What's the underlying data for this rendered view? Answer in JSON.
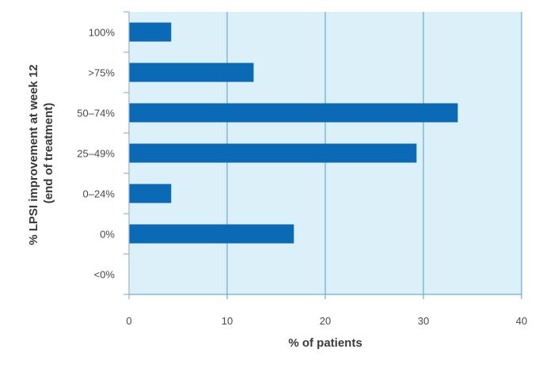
{
  "chart_data": {
    "type": "bar",
    "orientation": "horizontal",
    "categories": [
      "100%",
      ">75%",
      "50–74%",
      "25–49%",
      "0–24%",
      "0%",
      "<0%"
    ],
    "values": [
      4.3,
      12.7,
      33.5,
      29.3,
      4.3,
      16.8,
      0
    ],
    "xlabel": "% of patients",
    "ylabel_line1": "% LPSI improvement at week 12",
    "ylabel_line2": "(end of treatment)",
    "xlim": [
      0,
      40
    ],
    "xticks": [
      "0",
      "10",
      "20",
      "30",
      "40"
    ],
    "grid": "vertical",
    "colors": {
      "bar": "#0a6ab5",
      "plot_background": "#dcf0f9",
      "grid": "#6aaecd",
      "axis": "#9fb3bf"
    }
  }
}
